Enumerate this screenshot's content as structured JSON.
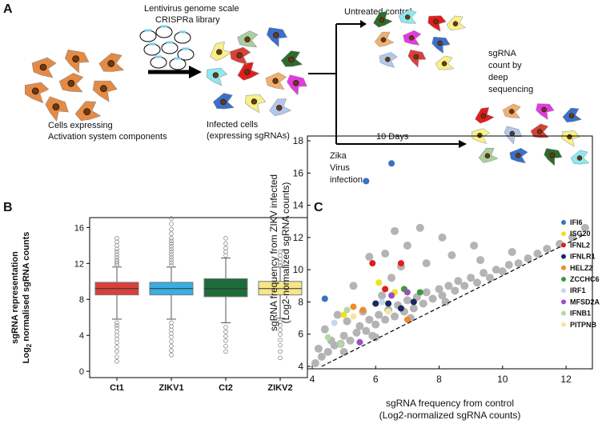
{
  "panel_labels": [
    "A",
    "B",
    "C"
  ],
  "diagram": {
    "library_label": [
      "Lentivirus genome scale",
      "CRISPRa library"
    ],
    "start_cells_label": [
      "Cells expressing",
      "Activation system components"
    ],
    "infected_label": [
      "Infected cells",
      "(expressing sgRNAs)"
    ],
    "control_label": "Untreated control",
    "readout_label": [
      "sgRNA",
      "count by",
      "deep",
      "sequencing"
    ],
    "duration_label": "10 Days",
    "infection_label": [
      "Zika",
      "Virus",
      "infection"
    ]
  },
  "chart_data": [
    {
      "type": "boxplot",
      "categories": [
        "Ct1",
        "ZIKV1",
        "Ct2",
        "ZIKV2"
      ],
      "colors": [
        "#d9403a",
        "#3aaee0",
        "#1e6b3a",
        "#f5e68c"
      ],
      "y_label": {
        "line1": "sgRNA representation",
        "line2": [
          "Log",
          "2",
          "normalised sgRNA counts"
        ]
      },
      "ylim": [
        -0.7,
        17.1
      ],
      "yticks": [
        0,
        4,
        8,
        12,
        16
      ],
      "boxes": [
        {
          "q1": 8.5,
          "median": 9.2,
          "q3": 9.9,
          "whisker_low": 5.8,
          "whisker_high": 11.6,
          "outliers": [
            11.8,
            12.0,
            12.2,
            12.4,
            12.7,
            13.0,
            13.3,
            13.6,
            14.0,
            14.4,
            14.8,
            5.4,
            5.1,
            4.8,
            4.4,
            4.0,
            3.6,
            3.2,
            2.7,
            2.2,
            1.6,
            1.1
          ]
        },
        {
          "q1": 8.5,
          "median": 9.2,
          "q3": 9.9,
          "whisker_low": 5.8,
          "whisker_high": 11.6,
          "outliers": [
            11.8,
            12.1,
            12.4,
            12.7,
            13.0,
            13.3,
            13.6,
            13.9,
            14.2,
            14.5,
            14.8,
            15.3,
            15.8,
            16.4,
            17.0,
            5.4,
            5.0,
            4.6,
            4.2,
            3.8,
            3.3,
            2.8,
            2.3,
            1.8
          ]
        },
        {
          "q1": 8.3,
          "median": 9.2,
          "q3": 10.3,
          "whisker_low": 5.4,
          "whisker_high": 12.6,
          "outliers": [
            12.9,
            13.3,
            13.7,
            14.2,
            14.8,
            4.9,
            4.4,
            3.9,
            3.4,
            2.8,
            2.2
          ]
        },
        {
          "q1": 8.5,
          "median": 9.2,
          "q3": 10.0,
          "whisker_low": 5.9,
          "whisker_high": 11.6,
          "outliers": [
            11.8,
            12.1,
            12.5,
            12.9,
            13.3,
            5.5,
            5.1,
            4.6,
            4.1,
            3.5,
            2.9,
            2.2,
            1.5
          ]
        }
      ]
    },
    {
      "type": "scatter",
      "y_label": [
        "sgRNA frequency from ZIKV infected",
        "(Log2-normalized sgRNA counts)"
      ],
      "x_label": [
        "sgRNA frequency from control",
        "(Log2-normalized sgRNA counts)"
      ],
      "xlim": [
        3.85,
        12.83
      ],
      "xticks": [
        4,
        6,
        8,
        10,
        12
      ],
      "ylim": [
        3.85,
        18.3
      ],
      "yticks": [
        4,
        6,
        8,
        10,
        12,
        14,
        16,
        18
      ],
      "background": {
        "color": "#b4b4b4",
        "x": [
          4.1,
          4.3,
          4.5,
          4.7,
          4.9,
          5.0,
          5.2,
          5.4,
          5.5,
          5.7,
          5.8,
          6.0,
          6.1,
          6.3,
          6.4,
          6.6,
          6.7,
          6.9,
          7.0,
          7.2,
          7.3,
          7.5,
          7.6,
          7.8,
          8.0,
          8.1,
          8.3,
          8.5,
          8.6,
          8.8,
          9.0,
          9.2,
          9.4,
          9.6,
          9.8,
          10.0,
          10.2,
          10.5,
          10.8,
          11.1,
          11.4,
          11.8,
          12.2,
          12.6,
          4.6,
          5.1,
          5.6,
          6.2,
          6.5,
          6.8,
          7.0,
          6.6,
          7.4,
          8.1,
          5.8,
          6.3,
          7.6,
          8.4,
          9.3,
          5.3,
          4.8,
          4.4,
          5.9,
          7.1,
          8.2,
          4.2,
          5.0,
          6.0,
          9.1,
          10.3
        ],
        "y": [
          4.2,
          4.6,
          4.9,
          5.3,
          5.4,
          5.9,
          5.6,
          6.1,
          6.5,
          6.2,
          6.9,
          6.6,
          7.2,
          6.9,
          7.5,
          7.1,
          7.8,
          7.4,
          8.1,
          7.6,
          8.3,
          7.9,
          8.6,
          8.2,
          8.8,
          8.4,
          9.0,
          8.7,
          9.3,
          9.0,
          9.5,
          9.2,
          9.8,
          9.5,
          10.0,
          9.9,
          10.3,
          10.4,
          10.7,
          11.0,
          11.3,
          11.6,
          12.0,
          12.6,
          5.6,
          6.8,
          7.4,
          8.4,
          9.5,
          10.2,
          11.5,
          12.4,
          12.6,
          12.0,
          10.8,
          11.0,
          10.4,
          10.9,
          10.6,
          9.0,
          7.2,
          6.3,
          5.9,
          7.0,
          8.0,
          5.1,
          4.9,
          5.8,
          11.5,
          11.1
        ]
      },
      "trend_line": {
        "x": [
          4.3,
          12.6
        ],
        "y": [
          4.0,
          12.2
        ]
      },
      "series": [
        {
          "name": "IFI6",
          "color": "#3b6fc8",
          "x": [
            6.5,
            5.7,
            4.4
          ],
          "y": [
            16.6,
            15.5,
            8.2
          ]
        },
        {
          "name": "ISG20",
          "color": "#f2e21a",
          "x": [
            6.1,
            5.0,
            6.6
          ],
          "y": [
            9.2,
            7.2,
            8.6
          ]
        },
        {
          "name": "IFNL2",
          "color": "#e11d1d",
          "x": [
            5.9,
            6.8,
            6.3
          ],
          "y": [
            10.4,
            10.4,
            8.8
          ]
        },
        {
          "name": "IFNLR1",
          "color": "#1b2a5e",
          "x": [
            6.0,
            6.4,
            7.2,
            6.8
          ],
          "y": [
            7.9,
            7.9,
            8.0,
            7.6
          ]
        },
        {
          "name": "HELZ2",
          "color": "#f08a2a",
          "x": [
            5.6,
            7.0,
            5.3
          ],
          "y": [
            7.5,
            6.9,
            7.7
          ]
        },
        {
          "name": "ZCCHC6",
          "color": "#3a9a3a",
          "x": [
            6.9,
            7.4
          ],
          "y": [
            8.8,
            8.6
          ]
        },
        {
          "name": "IRF1",
          "color": "#c6d6ee",
          "x": [
            4.7,
            6.2
          ],
          "y": [
            6.7,
            8.0
          ]
        },
        {
          "name": "MFSD2A",
          "color": "#9b4fc6",
          "x": [
            7.0,
            5.5,
            6.5
          ],
          "y": [
            8.6,
            5.5,
            8.4
          ]
        },
        {
          "name": "IFNB1",
          "color": "#b6d7a0",
          "x": [
            5.1,
            4.5,
            4.9
          ],
          "y": [
            7.5,
            5.8,
            5.4
          ]
        },
        {
          "name": "PITPNB",
          "color": "#f7e6a2",
          "x": [
            5.3,
            6.4
          ],
          "y": [
            7.1,
            7.4
          ]
        }
      ]
    }
  ]
}
